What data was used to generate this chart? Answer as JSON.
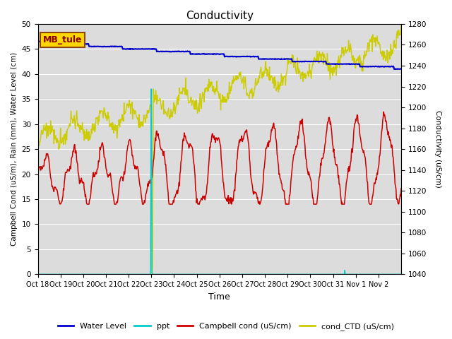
{
  "title": "Conductivity",
  "xlabel": "Time",
  "ylabel_left": "Campbell Cond (uS/m), Rain (mm), Water Level (cm)",
  "ylabel_right": "Conductivity (uS/cm)",
  "site_label": "MB_tule",
  "ylim_left": [
    0,
    50
  ],
  "ylim_right": [
    1040,
    1280
  ],
  "x_tick_labels": [
    "Oct 18",
    "Oct 19",
    "Oct 20",
    "Oct 21",
    "Oct 22",
    "Oct 23",
    "Oct 24",
    "Oct 25",
    "Oct 26",
    "Oct 27",
    "Oct 28",
    "Oct 29",
    "Oct 30",
    "Oct 31",
    "Nov 1",
    "Nov 2"
  ],
  "background_color": "#dcdcdc",
  "grid_color": "#ffffff",
  "colors": {
    "water_level": "#0000cc",
    "ppt": "#00cccc",
    "campbell": "#cc0000",
    "ctd": "#cccc00"
  },
  "right_ticks": [
    1040,
    1060,
    1080,
    1100,
    1120,
    1140,
    1160,
    1180,
    1200,
    1220,
    1240,
    1260,
    1280
  ],
  "left_ticks": [
    0,
    5,
    10,
    15,
    20,
    25,
    30,
    35,
    40,
    45,
    50
  ]
}
